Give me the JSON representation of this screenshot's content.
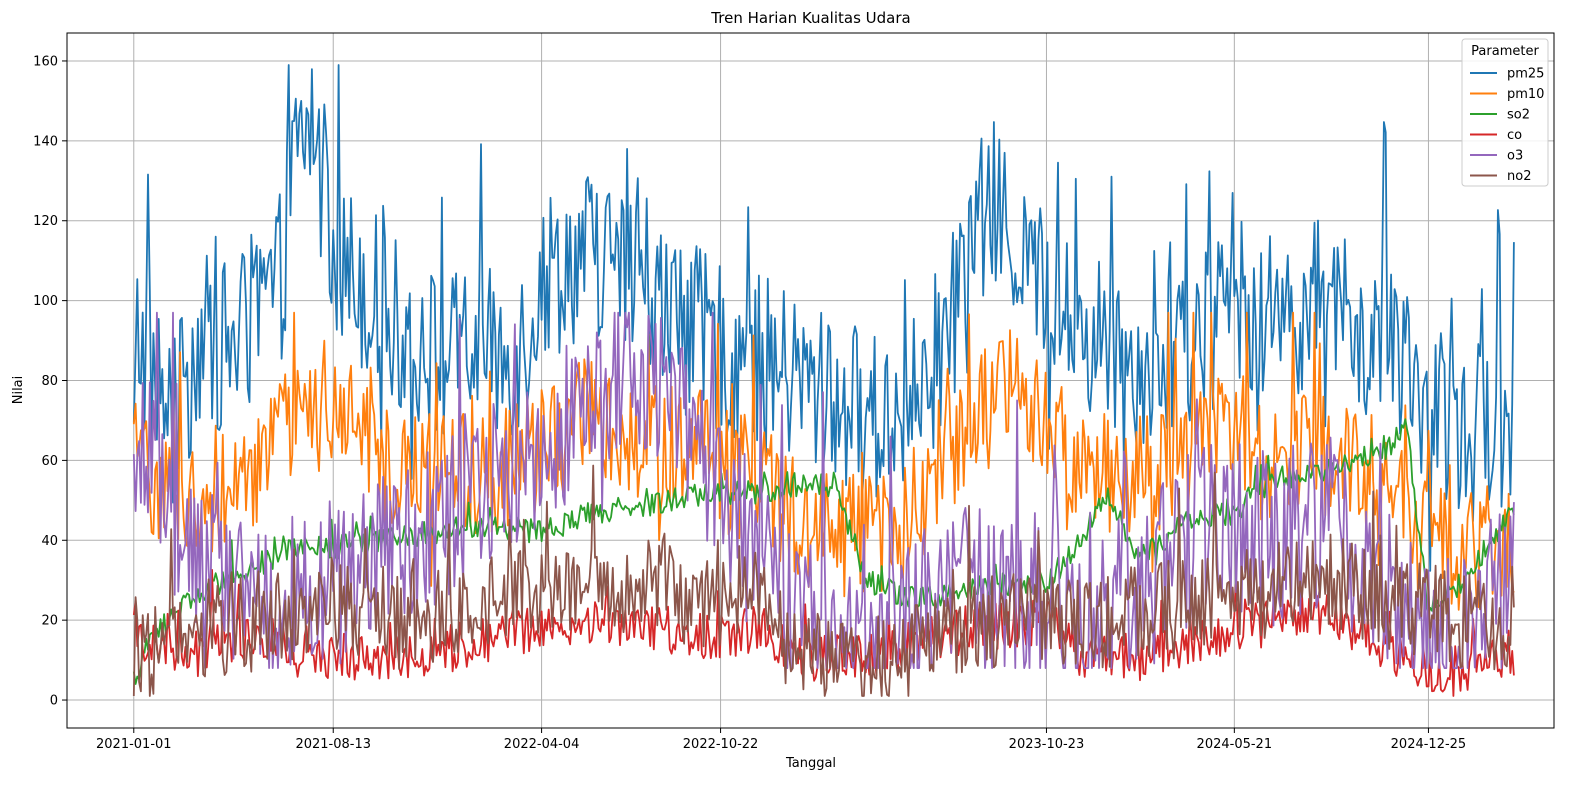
{
  "chart_data": {
    "type": "line",
    "title": "Tren Harian Kualitas Udara",
    "xlabel": "Tanggal",
    "ylabel": "Nilai",
    "x_start": "2021-01-01",
    "x_end": "2025-03-31",
    "xlim": [
      "2020-10-18",
      "2025-05-15"
    ],
    "ylim": [
      -7,
      167
    ],
    "x_ticks": [
      "2021-01-01",
      "2021-08-13",
      "2022-04-04",
      "2022-10-22",
      "2023-10-23",
      "2024-05-21",
      "2024-12-25"
    ],
    "y_ticks": [
      0,
      20,
      40,
      60,
      80,
      100,
      120,
      140,
      160
    ],
    "grid": true,
    "legend": {
      "title": "Parameter",
      "placement": "top-right"
    },
    "series": [
      {
        "name": "pm25",
        "color": "#1f77b4",
        "points": [
          [
            "2021-01-01",
            60
          ],
          [
            "2021-01-05",
            92
          ],
          [
            "2021-02-15",
            68
          ],
          [
            "2021-03-15",
            90
          ],
          [
            "2021-04-15",
            88
          ],
          [
            "2021-05-15",
            95
          ],
          [
            "2021-06-15",
            105
          ],
          [
            "2021-07-01",
            135
          ],
          [
            "2021-07-20",
            145
          ],
          [
            "2021-08-13",
            110
          ],
          [
            "2021-09-15",
            105
          ],
          [
            "2021-10-15",
            95
          ],
          [
            "2021-11-15",
            90
          ],
          [
            "2021-12-15",
            85
          ],
          [
            "2022-01-15",
            88
          ],
          [
            "2022-02-15",
            85
          ],
          [
            "2022-03-15",
            90
          ],
          [
            "2022-04-04",
            105
          ],
          [
            "2022-05-01",
            110
          ],
          [
            "2022-06-01",
            112
          ],
          [
            "2022-07-01",
            108
          ],
          [
            "2022-08-01",
            100
          ],
          [
            "2022-09-01",
            95
          ],
          [
            "2022-10-22",
            88
          ],
          [
            "2022-12-01",
            85
          ],
          [
            "2023-01-15",
            80
          ],
          [
            "2023-03-01",
            75
          ],
          [
            "2023-04-15",
            70
          ],
          [
            "2023-06-01",
            75
          ],
          [
            "2023-07-15",
            100
          ],
          [
            "2023-08-20",
            125
          ],
          [
            "2023-09-15",
            115
          ],
          [
            "2023-10-23",
            100
          ],
          [
            "2023-12-01",
            92
          ],
          [
            "2024-01-15",
            88
          ],
          [
            "2024-03-01",
            82
          ],
          [
            "2024-04-15",
            92
          ],
          [
            "2024-05-21",
            100
          ],
          [
            "2024-07-01",
            95
          ],
          [
            "2024-08-15",
            100
          ],
          [
            "2024-10-01",
            92
          ],
          [
            "2024-11-15",
            85
          ],
          [
            "2024-12-25",
            70
          ],
          [
            "2025-02-01",
            65
          ],
          [
            "2025-03-31",
            72
          ]
        ]
      },
      {
        "name": "pm10",
        "color": "#ff7f0e",
        "points": [
          [
            "2021-01-01",
            60
          ],
          [
            "2021-03-01",
            50
          ],
          [
            "2021-05-01",
            55
          ],
          [
            "2021-07-01",
            68
          ],
          [
            "2021-08-13",
            72
          ],
          [
            "2021-10-01",
            60
          ],
          [
            "2021-12-01",
            58
          ],
          [
            "2022-02-01",
            55
          ],
          [
            "2022-04-04",
            62
          ],
          [
            "2022-06-01",
            72
          ],
          [
            "2022-08-01",
            65
          ],
          [
            "2022-10-22",
            58
          ],
          [
            "2022-12-01",
            55
          ],
          [
            "2023-02-01",
            45
          ],
          [
            "2023-04-01",
            40
          ],
          [
            "2023-06-01",
            48
          ],
          [
            "2023-08-01",
            70
          ],
          [
            "2023-09-15",
            80
          ],
          [
            "2023-10-23",
            68
          ],
          [
            "2023-12-01",
            60
          ],
          [
            "2024-02-01",
            55
          ],
          [
            "2024-04-01",
            62
          ],
          [
            "2024-05-21",
            70
          ],
          [
            "2024-07-01",
            60
          ],
          [
            "2024-09-01",
            62
          ],
          [
            "2024-11-01",
            55
          ],
          [
            "2024-12-25",
            40
          ],
          [
            "2025-02-01",
            38
          ],
          [
            "2025-03-31",
            40
          ]
        ]
      },
      {
        "name": "so2",
        "color": "#2ca02c",
        "points": [
          [
            "2021-01-01",
            5
          ],
          [
            "2021-01-20",
            15
          ],
          [
            "2021-03-01",
            25
          ],
          [
            "2021-05-01",
            32
          ],
          [
            "2021-07-01",
            38
          ],
          [
            "2021-08-13",
            38
          ],
          [
            "2021-10-01",
            40
          ],
          [
            "2021-12-01",
            42
          ],
          [
            "2022-02-01",
            44
          ],
          [
            "2022-04-04",
            42
          ],
          [
            "2022-06-01",
            47
          ],
          [
            "2022-08-01",
            49
          ],
          [
            "2022-10-22",
            52
          ],
          [
            "2022-12-01",
            52
          ],
          [
            "2023-01-15",
            54
          ],
          [
            "2023-03-01",
            54
          ],
          [
            "2023-04-01",
            30
          ],
          [
            "2023-06-01",
            25
          ],
          [
            "2023-08-01",
            28
          ],
          [
            "2023-10-23",
            30
          ],
          [
            "2023-12-01",
            40
          ],
          [
            "2024-01-01",
            52
          ],
          [
            "2024-02-01",
            35
          ],
          [
            "2024-04-01",
            45
          ],
          [
            "2024-05-21",
            47
          ],
          [
            "2024-07-01",
            55
          ],
          [
            "2024-09-01",
            58
          ],
          [
            "2024-11-01",
            62
          ],
          [
            "2024-12-01",
            68
          ],
          [
            "2024-12-25",
            22
          ],
          [
            "2025-02-01",
            30
          ],
          [
            "2025-03-31",
            48
          ]
        ]
      },
      {
        "name": "co",
        "color": "#d62728",
        "points": [
          [
            "2021-01-01",
            15
          ],
          [
            "2021-03-01",
            12
          ],
          [
            "2021-05-01",
            16
          ],
          [
            "2021-07-01",
            14
          ],
          [
            "2021-08-13",
            11
          ],
          [
            "2021-10-01",
            10
          ],
          [
            "2021-12-01",
            12
          ],
          [
            "2022-02-01",
            15
          ],
          [
            "2022-04-04",
            18
          ],
          [
            "2022-06-01",
            20
          ],
          [
            "2022-08-01",
            18
          ],
          [
            "2022-10-22",
            16
          ],
          [
            "2022-12-01",
            18
          ],
          [
            "2023-02-01",
            10
          ],
          [
            "2023-04-01",
            11
          ],
          [
            "2023-06-01",
            15
          ],
          [
            "2023-08-01",
            18
          ],
          [
            "2023-10-23",
            20
          ],
          [
            "2023-12-01",
            10
          ],
          [
            "2024-02-01",
            12
          ],
          [
            "2024-04-01",
            14
          ],
          [
            "2024-05-21",
            16
          ],
          [
            "2024-07-01",
            20
          ],
          [
            "2024-09-01",
            22
          ],
          [
            "2024-11-01",
            14
          ],
          [
            "2024-12-25",
            7
          ],
          [
            "2025-02-01",
            8
          ],
          [
            "2025-03-31",
            12
          ]
        ]
      },
      {
        "name": "o3",
        "color": "#9467bd",
        "points": [
          [
            "2021-01-01",
            40
          ],
          [
            "2021-01-15",
            70
          ],
          [
            "2021-02-15",
            45
          ],
          [
            "2021-04-01",
            30
          ],
          [
            "2021-06-01",
            25
          ],
          [
            "2021-08-13",
            28
          ],
          [
            "2021-10-01",
            35
          ],
          [
            "2021-12-01",
            45
          ],
          [
            "2022-02-01",
            55
          ],
          [
            "2022-04-04",
            65
          ],
          [
            "2022-06-01",
            78
          ],
          [
            "2022-08-01",
            82
          ],
          [
            "2022-10-22",
            55
          ],
          [
            "2022-12-01",
            35
          ],
          [
            "2023-02-01",
            15
          ],
          [
            "2023-04-01",
            10
          ],
          [
            "2023-06-01",
            20
          ],
          [
            "2023-08-01",
            28
          ],
          [
            "2023-10-23",
            25
          ],
          [
            "2023-12-01",
            15
          ],
          [
            "2024-02-01",
            25
          ],
          [
            "2024-04-01",
            40
          ],
          [
            "2024-05-21",
            45
          ],
          [
            "2024-07-01",
            40
          ],
          [
            "2024-09-01",
            45
          ],
          [
            "2024-11-01",
            30
          ],
          [
            "2024-12-25",
            12
          ],
          [
            "2025-02-01",
            15
          ],
          [
            "2025-03-31",
            30
          ]
        ]
      },
      {
        "name": "no2",
        "color": "#8c564b",
        "points": [
          [
            "2021-01-01",
            10
          ],
          [
            "2021-03-01",
            15
          ],
          [
            "2021-05-01",
            18
          ],
          [
            "2021-07-01",
            22
          ],
          [
            "2021-08-13",
            25
          ],
          [
            "2021-10-01",
            22
          ],
          [
            "2021-12-01",
            20
          ],
          [
            "2022-02-01",
            25
          ],
          [
            "2022-04-04",
            28
          ],
          [
            "2022-06-01",
            30
          ],
          [
            "2022-08-01",
            28
          ],
          [
            "2022-10-22",
            30
          ],
          [
            "2022-12-01",
            28
          ],
          [
            "2023-02-01",
            12
          ],
          [
            "2023-04-01",
            8
          ],
          [
            "2023-06-01",
            12
          ],
          [
            "2023-08-01",
            18
          ],
          [
            "2023-10-23",
            22
          ],
          [
            "2023-12-01",
            18
          ],
          [
            "2024-02-01",
            22
          ],
          [
            "2024-04-01",
            25
          ],
          [
            "2024-05-21",
            25
          ],
          [
            "2024-07-01",
            28
          ],
          [
            "2024-09-01",
            30
          ],
          [
            "2024-11-01",
            25
          ],
          [
            "2024-12-25",
            22
          ],
          [
            "2025-02-01",
            20
          ],
          [
            "2025-03-31",
            18
          ]
        ]
      }
    ]
  }
}
